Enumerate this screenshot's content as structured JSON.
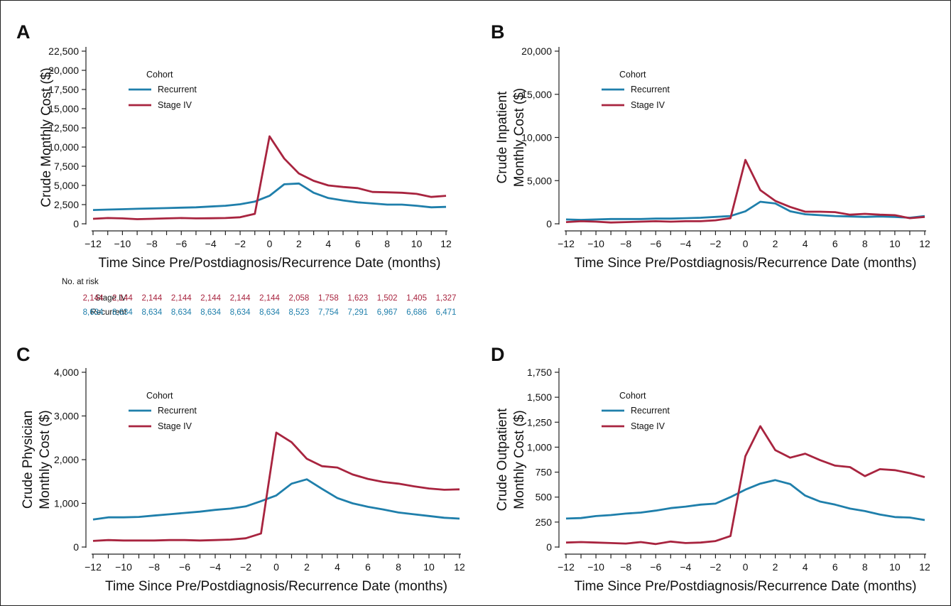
{
  "colors": {
    "recurrent": "#1f7fab",
    "stage_iv": "#a8243f",
    "axis": "#222222"
  },
  "x_ticks": [
    -12,
    -10,
    -8,
    -6,
    -4,
    -2,
    0,
    2,
    4,
    6,
    8,
    10,
    12
  ],
  "risk_table": {
    "title": "No. at risk",
    "rows": [
      {
        "label": "Stage IV",
        "color": "#a8243f",
        "values": [
          "2,144",
          "2,144",
          "2,144",
          "2,144",
          "2,144",
          "2,144",
          "2,144",
          "2,058",
          "1,758",
          "1,623",
          "1,502",
          "1,405",
          "1,327"
        ]
      },
      {
        "label": "Recurrent",
        "color": "#1f7fab",
        "values": [
          "8,634",
          "8,634",
          "8,634",
          "8,634",
          "8,634",
          "8,634",
          "8,634",
          "8,523",
          "7,754",
          "7,291",
          "6,967",
          "6,686",
          "6,471"
        ]
      }
    ]
  },
  "chart_data": [
    {
      "panel": "A",
      "type": "line",
      "xlabel": "Time Since Pre/Postdiagnosis/Recurrence Date (months)",
      "ylabel": [
        "Crude Monthly Cost ($)"
      ],
      "xlim": [
        -12,
        12
      ],
      "ylim": [
        0,
        22500
      ],
      "yticks": [
        0,
        2500,
        5000,
        7500,
        10000,
        12500,
        15000,
        17500,
        20000,
        22500
      ],
      "ytick_labels": [
        "0",
        "2,500",
        "5,000",
        "7,500",
        "10,000",
        "12,500",
        "15,000",
        "17,500",
        "20,000",
        "22,500"
      ],
      "legend": {
        "title": "Cohort",
        "entries": [
          "Recurrent",
          "Stage IV"
        ]
      },
      "x": [
        -12,
        -11,
        -10,
        -9,
        -8,
        -7,
        -6,
        -5,
        -4,
        -3,
        -2,
        -1,
        0,
        1,
        2,
        3,
        4,
        5,
        6,
        7,
        8,
        9,
        10,
        11,
        12
      ],
      "series": [
        {
          "name": "Recurrent",
          "color_key": "recurrent",
          "values": [
            1800,
            1850,
            1900,
            1950,
            2000,
            2050,
            2100,
            2150,
            2250,
            2350,
            2550,
            2900,
            3650,
            5150,
            5250,
            4050,
            3350,
            3050,
            2800,
            2650,
            2500,
            2500,
            2350,
            2150,
            2200
          ]
        },
        {
          "name": "Stage IV",
          "color_key": "stage_iv",
          "values": [
            650,
            750,
            700,
            600,
            650,
            700,
            750,
            700,
            720,
            750,
            850,
            1300,
            11400,
            8500,
            6550,
            5600,
            5000,
            4800,
            4650,
            4150,
            4100,
            4050,
            3900,
            3500,
            3650
          ]
        }
      ]
    },
    {
      "panel": "B",
      "type": "line",
      "xlabel": "Time Since Pre/Postdiagnosis/Recurrence Date (months)",
      "ylabel": [
        "Crude Inpatient",
        "Monthly Cost ($)"
      ],
      "xlim": [
        -12,
        12
      ],
      "ylim": [
        0,
        20000
      ],
      "yticks": [
        0,
        5000,
        10000,
        15000,
        20000
      ],
      "ytick_labels": [
        "0",
        "5,000",
        "10,000",
        "15,000",
        "20,000"
      ],
      "legend": {
        "title": "Cohort",
        "entries": [
          "Recurrent",
          "Stage IV"
        ]
      },
      "x": [
        -12,
        -11,
        -10,
        -9,
        -8,
        -7,
        -6,
        -5,
        -4,
        -3,
        -2,
        -1,
        0,
        1,
        2,
        3,
        4,
        5,
        6,
        7,
        8,
        9,
        10,
        11,
        12
      ],
      "series": [
        {
          "name": "Recurrent",
          "color_key": "recurrent",
          "values": [
            500,
            450,
            500,
            550,
            550,
            550,
            600,
            600,
            650,
            700,
            800,
            900,
            1450,
            2550,
            2350,
            1450,
            1100,
            1000,
            900,
            850,
            800,
            850,
            800,
            700,
            900
          ]
        },
        {
          "name": "Stage IV",
          "color_key": "stage_iv",
          "values": [
            200,
            300,
            250,
            150,
            200,
            250,
            300,
            250,
            300,
            300,
            400,
            650,
            7400,
            3900,
            2650,
            1950,
            1400,
            1400,
            1350,
            1050,
            1150,
            1050,
            1000,
            650,
            800
          ]
        }
      ]
    },
    {
      "panel": "C",
      "type": "line",
      "xlabel": "Time Since Pre/Postdiagnosis/Recurrence Date (months)",
      "ylabel": [
        "Crude Physician",
        "Monthly Cost ($)"
      ],
      "xlim": [
        -12,
        12
      ],
      "ylim": [
        0,
        4000
      ],
      "yticks": [
        0,
        1000,
        2000,
        3000,
        4000
      ],
      "ytick_labels": [
        "0",
        "1,000",
        "2,000",
        "3,000",
        "4,000"
      ],
      "legend": {
        "title": "Cohort",
        "entries": [
          "Recurrent",
          "Stage IV"
        ]
      },
      "x": [
        -12,
        -11,
        -10,
        -9,
        -8,
        -7,
        -6,
        -5,
        -4,
        -3,
        -2,
        -1,
        0,
        1,
        2,
        3,
        4,
        5,
        6,
        7,
        8,
        9,
        10,
        11,
        12
      ],
      "series": [
        {
          "name": "Recurrent",
          "color_key": "recurrent",
          "values": [
            630,
            680,
            680,
            690,
            720,
            750,
            780,
            810,
            850,
            880,
            930,
            1050,
            1180,
            1450,
            1550,
            1330,
            1120,
            1000,
            920,
            860,
            790,
            750,
            710,
            670,
            650
          ]
        },
        {
          "name": "Stage IV",
          "color_key": "stage_iv",
          "values": [
            140,
            160,
            150,
            150,
            150,
            160,
            160,
            150,
            160,
            170,
            200,
            310,
            2620,
            2400,
            2020,
            1850,
            1820,
            1660,
            1560,
            1490,
            1450,
            1390,
            1340,
            1310,
            1320
          ]
        }
      ]
    },
    {
      "panel": "D",
      "type": "line",
      "xlabel": "Time Since Pre/Postdiagnosis/Recurrence Date (months)",
      "ylabel": [
        "Crude Outpatient",
        "Monthly Cost ($)"
      ],
      "xlim": [
        -12,
        12
      ],
      "ylim": [
        0,
        1750
      ],
      "yticks": [
        0,
        250,
        500,
        750,
        1000,
        1250,
        1500,
        1750
      ],
      "ytick_labels": [
        "0",
        "250",
        "500",
        "750",
        "1,000",
        "1,250",
        "1,500",
        "1,750"
      ],
      "legend": {
        "title": "Cohort",
        "entries": [
          "Recurrent",
          "Stage IV"
        ]
      },
      "x": [
        -12,
        -11,
        -10,
        -9,
        -8,
        -7,
        -6,
        -5,
        -4,
        -3,
        -2,
        -1,
        0,
        1,
        2,
        3,
        4,
        5,
        6,
        7,
        8,
        9,
        10,
        11,
        12
      ],
      "series": [
        {
          "name": "Recurrent",
          "color_key": "recurrent",
          "values": [
            285,
            290,
            310,
            320,
            335,
            345,
            365,
            390,
            405,
            425,
            435,
            500,
            575,
            635,
            670,
            630,
            515,
            455,
            425,
            385,
            360,
            325,
            300,
            295,
            270
          ]
        },
        {
          "name": "Stage IV",
          "color_key": "stage_iv",
          "values": [
            45,
            50,
            45,
            40,
            35,
            50,
            30,
            55,
            40,
            45,
            60,
            110,
            910,
            1210,
            970,
            895,
            935,
            870,
            815,
            800,
            710,
            780,
            770,
            740,
            700
          ]
        }
      ]
    }
  ]
}
